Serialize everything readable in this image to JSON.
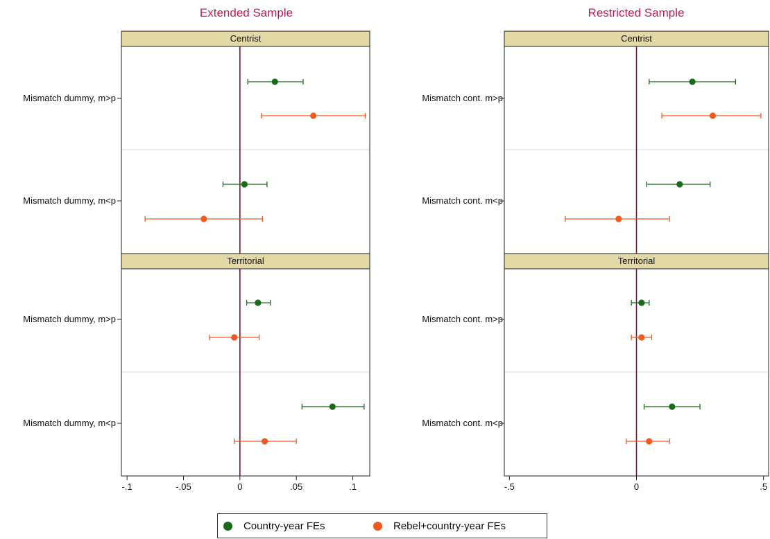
{
  "chart_data": [
    {
      "type": "scatter",
      "subtype": "coefficient-plot",
      "title": "Extended Sample",
      "xlim": [
        -0.105,
        0.115
      ],
      "xticks": [
        -0.1,
        -0.05,
        0,
        0.05,
        0.1
      ],
      "xtick_labels": [
        "-.1",
        "-.05",
        "0",
        ".05",
        ".1"
      ],
      "reference_line_x": 0,
      "panels": [
        {
          "label": "Centrist",
          "rows": [
            {
              "label": "Mismatch dummy, m>p",
              "estimates": [
                {
                  "series": "Country-year FEs",
                  "value": 0.031,
                  "ci": [
                    0.007,
                    0.056
                  ]
                },
                {
                  "series": "Rebel+country-year FEs",
                  "value": 0.065,
                  "ci": [
                    0.019,
                    0.111
                  ]
                }
              ]
            },
            {
              "label": "Mismatch dummy, m<p",
              "estimates": [
                {
                  "series": "Country-year FEs",
                  "value": 0.004,
                  "ci": [
                    -0.015,
                    0.024
                  ]
                },
                {
                  "series": "Rebel+country-year FEs",
                  "value": -0.032,
                  "ci": [
                    -0.084,
                    0.02
                  ]
                }
              ]
            }
          ]
        },
        {
          "label": "Territorial",
          "rows": [
            {
              "label": "Mismatch dummy, m>p",
              "estimates": [
                {
                  "series": "Country-year FEs",
                  "value": 0.016,
                  "ci": [
                    0.006,
                    0.027
                  ]
                },
                {
                  "series": "Rebel+country-year FEs",
                  "value": -0.005,
                  "ci": [
                    -0.027,
                    0.017
                  ]
                }
              ]
            },
            {
              "label": "Mismatch dummy, m<p",
              "estimates": [
                {
                  "series": "Country-year FEs",
                  "value": 0.082,
                  "ci": [
                    0.055,
                    0.11
                  ]
                },
                {
                  "series": "Rebel+country-year FEs",
                  "value": 0.022,
                  "ci": [
                    -0.005,
                    0.05
                  ]
                }
              ]
            }
          ]
        }
      ]
    },
    {
      "type": "scatter",
      "subtype": "coefficient-plot",
      "title": "Restricted Sample",
      "xlim": [
        -0.52,
        0.52
      ],
      "xticks": [
        -0.5,
        0,
        0.5
      ],
      "xtick_labels": [
        "-.5",
        "0",
        ".5"
      ],
      "reference_line_x": 0,
      "panels": [
        {
          "label": "Centrist",
          "rows": [
            {
              "label": "Mismatch cont. m>p",
              "estimates": [
                {
                  "series": "Country-year FEs",
                  "value": 0.22,
                  "ci": [
                    0.05,
                    0.39
                  ]
                },
                {
                  "series": "Rebel+country-year FEs",
                  "value": 0.3,
                  "ci": [
                    0.1,
                    0.49
                  ]
                }
              ]
            },
            {
              "label": "Mismatch cont. m<p",
              "estimates": [
                {
                  "series": "Country-year FEs",
                  "value": 0.17,
                  "ci": [
                    0.04,
                    0.29
                  ]
                },
                {
                  "series": "Rebel+country-year FEs",
                  "value": -0.07,
                  "ci": [
                    -0.28,
                    0.13
                  ]
                }
              ]
            }
          ]
        },
        {
          "label": "Territorial",
          "rows": [
            {
              "label": "Mismatch cont. m>p",
              "estimates": [
                {
                  "series": "Country-year FEs",
                  "value": 0.02,
                  "ci": [
                    -0.02,
                    0.05
                  ]
                },
                {
                  "series": "Rebel+country-year FEs",
                  "value": 0.02,
                  "ci": [
                    -0.02,
                    0.06
                  ]
                }
              ]
            },
            {
              "label": "Mismatch cont. m<p",
              "estimates": [
                {
                  "series": "Country-year FEs",
                  "value": 0.14,
                  "ci": [
                    0.03,
                    0.25
                  ]
                },
                {
                  "series": "Rebel+country-year FEs",
                  "value": 0.05,
                  "ci": [
                    -0.04,
                    0.13
                  ]
                }
              ]
            }
          ]
        }
      ]
    }
  ],
  "legend": {
    "placement": "bottom-center",
    "entries": [
      {
        "label": "Country-year FEs",
        "color": "#1a6a1a"
      },
      {
        "label": "Rebel+country-year FEs",
        "color": "#f05a1e"
      }
    ]
  },
  "colors": {
    "title": "#c2185b",
    "strip_fill": "#e3d9a6",
    "reference_line": "#7b1040",
    "separator": "#dcdcdc"
  }
}
